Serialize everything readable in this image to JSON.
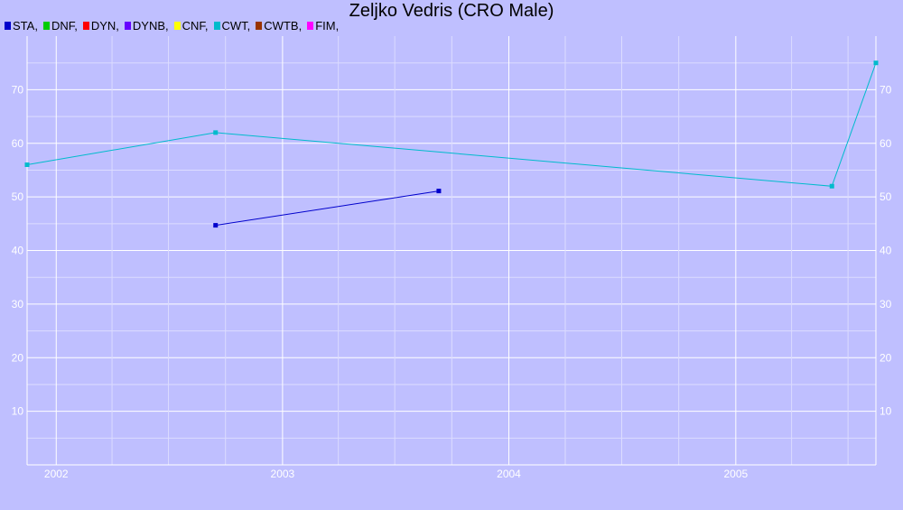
{
  "chart_data": {
    "type": "line",
    "title": "Zeljko Vedris (CRO Male)",
    "xlabel": "",
    "ylabel": "",
    "legend_position": "top-left",
    "legend": [
      {
        "label": "STA,",
        "color": "#0000cc"
      },
      {
        "label": "DNF,",
        "color": "#00cc00"
      },
      {
        "label": "DYN,",
        "color": "#ff0000"
      },
      {
        "label": "DYNB,",
        "color": "#6600ff"
      },
      {
        "label": "CNF,",
        "color": "#ffff00"
      },
      {
        "label": "CWT,",
        "color": "#00bbcc"
      },
      {
        "label": "CWTB,",
        "color": "#993300"
      },
      {
        "label": "FIM,",
        "color": "#ff00ff"
      }
    ],
    "xlim": [
      "2001-11-15",
      "2005-08-15"
    ],
    "ylim": [
      0,
      80
    ],
    "x_ticks": [
      "2002",
      "2003",
      "2004",
      "2005"
    ],
    "y_ticks": [
      10,
      20,
      30,
      40,
      50,
      60,
      70
    ],
    "grid": true,
    "series": [
      {
        "name": "STA,",
        "color": "#0000cc",
        "points": [
          {
            "x": "2002-09-15",
            "y": 44.7
          },
          {
            "x": "2003-09-10",
            "y": 51.1
          }
        ]
      },
      {
        "name": "CWT,",
        "color": "#00bbcc",
        "points": [
          {
            "x": "2001-11-15",
            "y": 56
          },
          {
            "x": "2002-09-15",
            "y": 62
          },
          {
            "x": "2005-06-05",
            "y": 52
          },
          {
            "x": "2005-08-15",
            "y": 75
          }
        ]
      }
    ]
  }
}
